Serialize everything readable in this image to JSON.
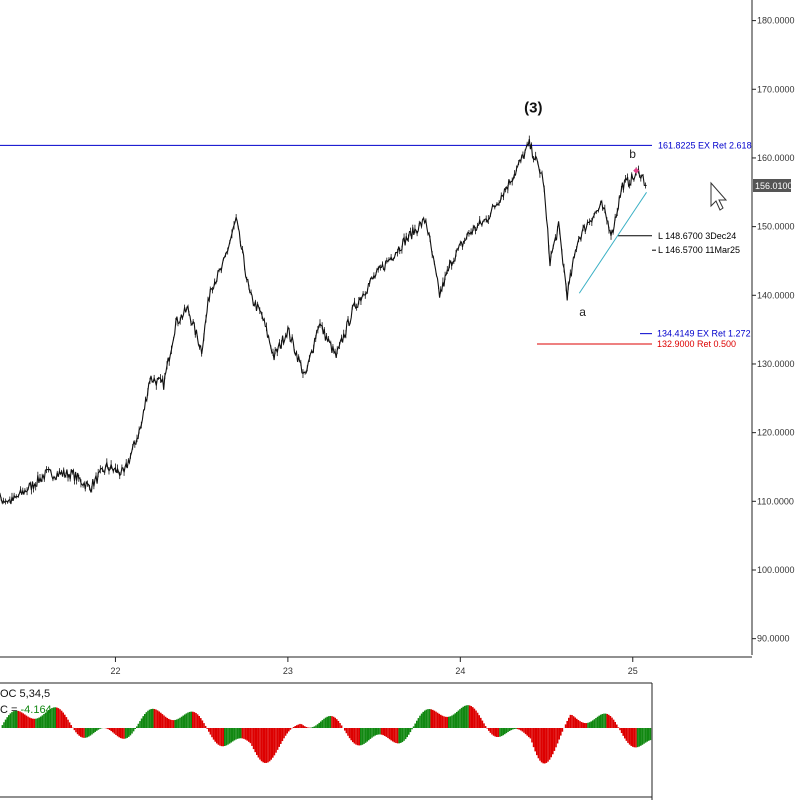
{
  "chart_data": [
    {
      "type": "line",
      "title": "",
      "xlabel": "",
      "ylabel": "",
      "ylim": [
        85,
        183
      ],
      "x_ticks": [
        "22",
        "23",
        "24",
        "25"
      ],
      "y_ticks": [
        "180.0000",
        "170.0000",
        "160.0000",
        "150.0000",
        "140.0000",
        "130.0000",
        "120.0000",
        "110.0000",
        "100.0000",
        "90.0000"
      ],
      "x": [
        21.0,
        21.2,
        21.4,
        21.6,
        21.75,
        21.85,
        21.95,
        22.05,
        22.15,
        22.2,
        22.28,
        22.35,
        22.42,
        22.5,
        22.55,
        22.62,
        22.7,
        22.78,
        22.85,
        22.92,
        23.0,
        23.1,
        23.18,
        23.28,
        23.38,
        23.48,
        23.58,
        23.68,
        23.8,
        23.88,
        23.95,
        24.05,
        24.15,
        24.25,
        24.32,
        24.4,
        24.48,
        24.52,
        24.57,
        24.62,
        24.68,
        24.75,
        24.82,
        24.88,
        24.94,
        25.0,
        25.04,
        25.08
      ],
      "values": [
        109,
        111,
        110,
        114,
        114,
        112,
        115,
        114,
        121,
        128,
        127,
        136,
        138,
        132,
        141,
        144,
        151,
        140,
        137,
        131,
        135,
        128,
        136,
        131,
        138,
        142,
        145,
        148,
        151,
        140,
        145,
        149,
        151,
        155,
        158,
        162,
        157,
        145,
        150,
        140,
        148,
        151,
        153,
        149,
        156,
        157,
        158,
        156
      ],
      "current_price": "156.0100",
      "wave_labels": [
        "(3)",
        "a",
        "b"
      ],
      "levels": [
        {
          "value": 161.8225,
          "label": "161.8225 EX Ret 2.618",
          "color": "#0000cc"
        },
        {
          "value": 148.67,
          "label": "L 148.6700 3Dec24",
          "color": "#000000"
        },
        {
          "value": 146.57,
          "label": "L 146.5700 11Mar25",
          "color": "#000000"
        },
        {
          "value": 134.4149,
          "label": "134.4149 EX Ret 1.272",
          "color": "#0000cc"
        },
        {
          "value": 132.9,
          "label": "132.9000 Ret 0.500",
          "color": "#dd0000"
        }
      ],
      "trendline": {
        "from": [
          24.69,
          140.3
        ],
        "to": [
          25.08,
          155
        ],
        "color": "#3ab0c4"
      }
    },
    {
      "type": "bar",
      "title": "",
      "indicator_label": "OC 5,34,5",
      "value_label_prefix": "C = ",
      "value": "-4.164",
      "colors": {
        "up": "#118811",
        "down": "#dd0000"
      }
    }
  ]
}
